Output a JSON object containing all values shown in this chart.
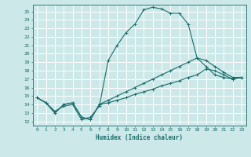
{
  "title": "",
  "xlabel": "Humidex (Indice chaleur)",
  "ylabel": "",
  "xlim": [
    -0.5,
    23.5
  ],
  "ylim": [
    11.5,
    25.8
  ],
  "yticks": [
    12,
    13,
    14,
    15,
    16,
    17,
    18,
    19,
    20,
    21,
    22,
    23,
    24,
    25
  ],
  "xticks": [
    0,
    1,
    2,
    3,
    4,
    5,
    6,
    7,
    8,
    9,
    10,
    11,
    12,
    13,
    14,
    15,
    16,
    17,
    18,
    19,
    20,
    21,
    22,
    23
  ],
  "bg_color": "#cce8e8",
  "grid_color": "#ffffff",
  "line_color": "#1a6b6b",
  "curves": [
    {
      "x": [
        0,
        1,
        2,
        3,
        4,
        5,
        6,
        7,
        8,
        9,
        10,
        11,
        12,
        13,
        14,
        15,
        16,
        17,
        18,
        19,
        20,
        21,
        22,
        23
      ],
      "y": [
        14.8,
        14.2,
        13.2,
        13.8,
        14.0,
        12.2,
        12.5,
        13.8,
        19.2,
        21.0,
        22.5,
        23.5,
        25.2,
        25.5,
        25.3,
        24.8,
        24.8,
        23.5,
        19.5,
        19.2,
        18.5,
        17.8,
        17.2,
        17.2
      ]
    },
    {
      "x": [
        0,
        1,
        2,
        3,
        4,
        5,
        6,
        7,
        8,
        9,
        10,
        11,
        12,
        13,
        14,
        15,
        16,
        17,
        18,
        19,
        20,
        21,
        22,
        23
      ],
      "y": [
        14.8,
        14.2,
        13.0,
        14.0,
        14.2,
        12.5,
        12.2,
        14.0,
        14.5,
        15.0,
        15.5,
        16.0,
        16.5,
        17.0,
        17.5,
        18.0,
        18.5,
        19.0,
        19.5,
        18.5,
        17.5,
        17.2,
        17.0,
        17.2
      ]
    },
    {
      "x": [
        0,
        1,
        2,
        3,
        4,
        5,
        6,
        7,
        8,
        9,
        10,
        11,
        12,
        13,
        14,
        15,
        16,
        17,
        18,
        19,
        20,
        21,
        22,
        23
      ],
      "y": [
        14.8,
        14.2,
        13.0,
        14.0,
        14.2,
        12.5,
        12.2,
        14.0,
        14.2,
        14.5,
        14.8,
        15.2,
        15.5,
        15.8,
        16.2,
        16.5,
        16.8,
        17.2,
        17.5,
        18.2,
        18.0,
        17.5,
        17.0,
        17.2
      ]
    }
  ]
}
